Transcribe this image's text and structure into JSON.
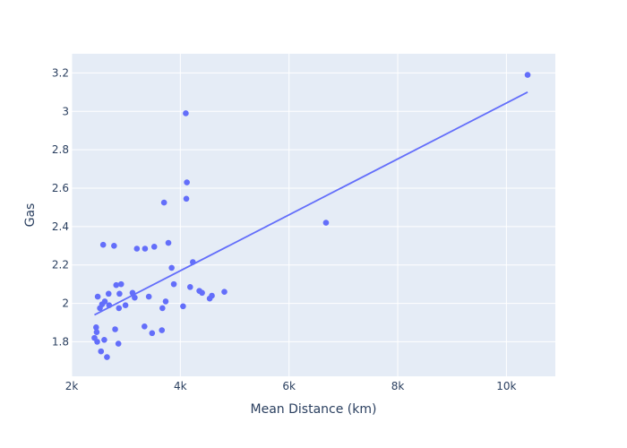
{
  "chart_data": {
    "type": "scatter",
    "xlabel": "Mean Distance (km)",
    "ylabel": "Gas",
    "xlim": [
      2000,
      10900
    ],
    "ylim": [
      1.62,
      3.3
    ],
    "xticks": [
      2000,
      4000,
      6000,
      8000,
      10000
    ],
    "xtick_labels": [
      "2k",
      "4k",
      "6k",
      "8k",
      "10k"
    ],
    "yticks": [
      1.8,
      2.0,
      2.2,
      2.4,
      2.6,
      2.8,
      3.0,
      3.2
    ],
    "ytick_labels": [
      "1.8",
      "2",
      "2.2",
      "2.4",
      "2.6",
      "2.8",
      "3",
      "3.2"
    ],
    "grid": true,
    "colors": {
      "marker": "#636efa",
      "trendline": "#636efa",
      "plot_bg": "#e5ecf6",
      "grid": "#ffffff",
      "text": "#2a3f5f"
    },
    "points": [
      {
        "x": 2420,
        "y": 1.82
      },
      {
        "x": 2450,
        "y": 1.875
      },
      {
        "x": 2460,
        "y": 1.85
      },
      {
        "x": 2470,
        "y": 1.8
      },
      {
        "x": 2480,
        "y": 2.035
      },
      {
        "x": 2520,
        "y": 1.975
      },
      {
        "x": 2540,
        "y": 1.75
      },
      {
        "x": 2560,
        "y": 1.995
      },
      {
        "x": 2580,
        "y": 2.305
      },
      {
        "x": 2600,
        "y": 1.81
      },
      {
        "x": 2610,
        "y": 2.01
      },
      {
        "x": 2650,
        "y": 1.72
      },
      {
        "x": 2680,
        "y": 2.05
      },
      {
        "x": 2690,
        "y": 1.99
      },
      {
        "x": 2780,
        "y": 2.3
      },
      {
        "x": 2800,
        "y": 1.865
      },
      {
        "x": 2820,
        "y": 2.095
      },
      {
        "x": 2860,
        "y": 1.79
      },
      {
        "x": 2870,
        "y": 1.975
      },
      {
        "x": 2880,
        "y": 2.05
      },
      {
        "x": 2910,
        "y": 2.1
      },
      {
        "x": 2990,
        "y": 1.99
      },
      {
        "x": 3120,
        "y": 2.055
      },
      {
        "x": 3160,
        "y": 2.03
      },
      {
        "x": 3200,
        "y": 2.285
      },
      {
        "x": 3340,
        "y": 1.88
      },
      {
        "x": 3350,
        "y": 2.285
      },
      {
        "x": 3420,
        "y": 2.035
      },
      {
        "x": 3480,
        "y": 1.845
      },
      {
        "x": 3520,
        "y": 2.295
      },
      {
        "x": 3660,
        "y": 1.86
      },
      {
        "x": 3670,
        "y": 1.975
      },
      {
        "x": 3700,
        "y": 2.525
      },
      {
        "x": 3730,
        "y": 2.01
      },
      {
        "x": 3780,
        "y": 2.315
      },
      {
        "x": 3840,
        "y": 2.185
      },
      {
        "x": 3880,
        "y": 2.1
      },
      {
        "x": 4050,
        "y": 1.985
      },
      {
        "x": 4100,
        "y": 2.99
      },
      {
        "x": 4110,
        "y": 2.545
      },
      {
        "x": 4120,
        "y": 2.63
      },
      {
        "x": 4180,
        "y": 2.085
      },
      {
        "x": 4230,
        "y": 2.215
      },
      {
        "x": 4350,
        "y": 2.065
      },
      {
        "x": 4400,
        "y": 2.055
      },
      {
        "x": 4540,
        "y": 2.025
      },
      {
        "x": 4580,
        "y": 2.04
      },
      {
        "x": 4810,
        "y": 2.06
      },
      {
        "x": 6680,
        "y": 2.42
      },
      {
        "x": 10390,
        "y": 3.19
      }
    ],
    "trendline": [
      {
        "x": 2420,
        "y": 1.94
      },
      {
        "x": 10390,
        "y": 3.1
      }
    ]
  }
}
